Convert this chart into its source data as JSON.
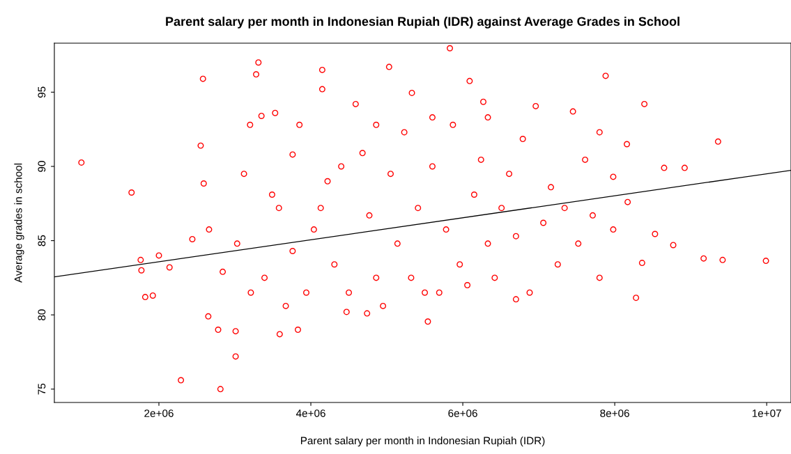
{
  "chart_data": {
    "type": "scatter",
    "title": "Parent salary per month in Indonesian Rupiah (IDR) against Average Grades in School",
    "xlabel": "Parent salary per month in Indonesian Rupiah (IDR)",
    "ylabel": "Average grades in school",
    "xlim": [
      624000,
      10320000
    ],
    "ylim": [
      74.1,
      98.3
    ],
    "xticks": [
      {
        "value": 2000000,
        "label": "2e+06"
      },
      {
        "value": 4000000,
        "label": "4e+06"
      },
      {
        "value": 6000000,
        "label": "6e+06"
      },
      {
        "value": 8000000,
        "label": "8e+06"
      },
      {
        "value": 10000000,
        "label": "1e+07"
      }
    ],
    "yticks": [
      75,
      80,
      85,
      90,
      95
    ],
    "grid": false,
    "legend": false,
    "series": [
      {
        "color": "#ff0000",
        "marker": "circle",
        "x": [
          980000,
          1640000,
          1760000,
          1770000,
          1820000,
          1920000,
          2000000,
          2140000,
          2290000,
          2440000,
          2580000,
          2550000,
          2590000,
          2650000,
          2810000,
          2780000,
          3010000,
          3010000,
          3310000,
          3280000,
          3350000,
          3530000,
          3200000,
          3590000,
          3830000,
          4150000,
          4150000,
          4470000,
          4740000,
          5030000,
          5330000,
          5540000,
          5830000,
          6090000,
          6270000,
          6960000,
          7450000,
          7880000,
          8160000,
          8360000,
          8280000,
          9360000,
          9170000,
          9420000,
          9990000,
          8920000,
          8770000,
          8530000,
          8650000,
          8390000,
          7980000,
          3850000,
          3760000,
          3580000,
          3390000,
          3760000,
          4040000,
          4220000,
          4310000,
          4590000,
          4680000,
          4770000,
          4860000,
          5050000,
          5140000,
          5230000,
          5410000,
          5500000,
          5600000,
          5780000,
          5870000,
          5960000,
          6150000,
          6240000,
          6330000,
          6420000,
          6510000,
          6610000,
          6700000,
          6790000,
          6880000,
          7060000,
          7160000,
          7250000,
          7340000,
          7520000,
          7610000,
          7710000,
          7800000,
          2660000,
          2840000,
          3030000,
          3120000,
          3210000,
          3490000,
          3670000,
          3940000,
          4130000,
          4400000,
          4500000,
          4950000,
          5320000,
          5690000,
          6060000,
          6700000,
          6330000,
          5600000,
          4860000,
          7800000,
          7980000,
          8170000
        ],
        "values": [
          90.26,
          88.24,
          83.7,
          83.0,
          81.2,
          81.3,
          84.0,
          83.2,
          75.6,
          85.1,
          95.9,
          91.4,
          88.85,
          79.9,
          75.0,
          79.0,
          77.2,
          78.9,
          97.0,
          96.2,
          93.4,
          93.6,
          92.8,
          78.7,
          79.0,
          96.5,
          95.2,
          80.2,
          80.1,
          96.7,
          94.95,
          79.55,
          97.96,
          95.75,
          94.35,
          94.06,
          93.7,
          96.1,
          91.5,
          83.5,
          81.15,
          91.67,
          83.8,
          83.7,
          83.64,
          89.9,
          84.7,
          85.45,
          89.9,
          94.2,
          89.3,
          92.8,
          90.8,
          87.2,
          82.5,
          84.3,
          85.75,
          89.0,
          83.4,
          94.2,
          90.9,
          86.7,
          82.5,
          89.5,
          84.8,
          92.3,
          87.2,
          81.5,
          90.0,
          85.75,
          92.8,
          83.4,
          88.1,
          90.45,
          84.8,
          82.5,
          87.2,
          89.5,
          85.3,
          91.85,
          81.5,
          86.2,
          88.6,
          83.4,
          87.2,
          84.8,
          90.45,
          86.7,
          82.5,
          85.75,
          82.9,
          84.8,
          89.5,
          81.5,
          88.1,
          80.6,
          81.5,
          87.2,
          90.0,
          81.5,
          80.6,
          82.5,
          81.5,
          82.0,
          81.05,
          93.3,
          93.3,
          92.8,
          92.3,
          85.75,
          87.6
        ]
      },
      {
        "type": "line",
        "color": "#000000",
        "marker": "none",
        "x": [
          624000,
          10320000
        ],
        "values": [
          82.56,
          89.74
        ]
      }
    ]
  }
}
